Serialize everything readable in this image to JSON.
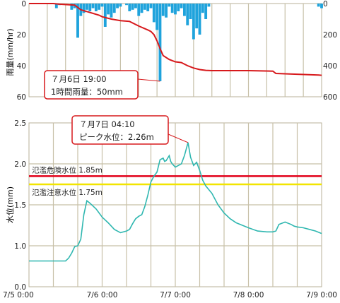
{
  "colors": {
    "rain_bar": "#1fa3dc",
    "cumulative_line": "#d7191c",
    "water_level_line": "#2fb7b0",
    "danger_line": "#e2001a",
    "caution_line": "#f2e500",
    "grid": "#c7c0a8",
    "callout_border": "#d7191c"
  },
  "chart_data": [
    {
      "type": "bar",
      "ylabel": "雨量(mm/hr)",
      "ylim": [
        60,
        0
      ],
      "yticks": [
        "0",
        "20",
        "40",
        "60"
      ],
      "right_ticks": [
        "0",
        "200",
        "400",
        "600"
      ],
      "right_ylim": [
        0,
        600
      ],
      "rain_bars": {
        "x": [
          "7/5 9:00",
          "7/5 10:00",
          "7/5 14:00",
          "7/5 15:00",
          "7/5 16:00",
          "7/5 17:00",
          "7/5 18:00",
          "7/5 19:00",
          "7/5 20:00",
          "7/5 21:00",
          "7/5 22:00",
          "7/5 23:00",
          "7/6 0:00",
          "7/6 1:00",
          "7/6 2:00",
          "7/6 3:00",
          "7/6 4:00",
          "7/6 5:00",
          "7/6 6:00",
          "7/6 8:00",
          "7/6 9:00",
          "7/6 10:00",
          "7/6 11:00",
          "7/6 12:00",
          "7/6 13:00",
          "7/6 14:00",
          "7/6 15:00",
          "7/6 16:00",
          "7/6 17:00",
          "7/6 18:00",
          "7/6 19:00",
          "7/6 20:00",
          "7/6 21:00",
          "7/6 22:00",
          "7/6 23:00",
          "7/7 0:00",
          "7/7 1:00",
          "7/7 2:00",
          "7/7 3:00",
          "7/7 4:00",
          "7/7 5:00",
          "7/7 6:00",
          "7/7 7:00",
          "7/7 8:00",
          "7/7 9:00",
          "7/7 10:00",
          "7/7 11:00",
          "7/8 23:00",
          "7/9 0:00"
        ],
        "values": [
          3,
          1,
          4,
          3,
          22,
          8,
          6,
          4,
          5,
          3,
          5,
          4,
          2,
          15,
          7,
          9,
          6,
          3,
          2,
          1,
          5,
          4,
          3,
          8,
          6,
          4,
          5,
          3,
          12,
          17,
          50,
          8,
          9,
          2,
          6,
          7,
          5,
          3,
          8,
          14,
          10,
          23,
          16,
          20,
          6,
          10,
          2,
          2,
          3
        ]
      },
      "cumulative_line": {
        "x": [
          "7/5 0:00",
          "7/5 8:00",
          "7/5 10:00",
          "7/5 15:00",
          "7/5 17:00",
          "7/5 23:00",
          "7/6 0:00",
          "7/6 3:00",
          "7/6 6:00",
          "7/6 9:00",
          "7/6 12:00",
          "7/6 15:00",
          "7/6 16:00",
          "7/6 17:00",
          "7/6 18:00",
          "7/6 19:00",
          "7/6 20:00",
          "7/6 22:00",
          "7/7 0:00",
          "7/7 2:00",
          "7/7 4:00",
          "7/7 6:00",
          "7/7 8:00",
          "7/7 10:00",
          "7/7 12:00",
          "7/8 0:00",
          "7/8 8:00",
          "7/8 9:00",
          "7/8 23:00",
          "7/9 0:00"
        ],
        "values": [
          0,
          0,
          4,
          10,
          40,
          75,
          85,
          100,
          110,
          115,
          145,
          170,
          180,
          200,
          240,
          290,
          335,
          360,
          375,
          380,
          400,
          415,
          425,
          430,
          432,
          432,
          435,
          450,
          460,
          462
        ]
      },
      "annotation": {
        "line1": "７月6日 19:00",
        "line2": "1時間雨量：50mm"
      }
    },
    {
      "type": "line",
      "ylabel": "水位(mm)",
      "ylim": [
        0.0,
        2.5
      ],
      "yticks": [
        "0.0",
        "1.0",
        "1.5",
        "2.0",
        "2.5"
      ],
      "x_tick_labels": [
        "7/5 0:00",
        "7/6 0:00",
        "7/7 0:00",
        "7/8 0:00",
        "7/9 0:00"
      ],
      "water_level": {
        "x": [
          "7/5 0:00",
          "7/5 6:00",
          "7/5 12:00",
          "7/5 13:00",
          "7/5 14:00",
          "7/5 15:00",
          "7/5 16:00",
          "7/5 17:00",
          "7/5 18:00",
          "7/5 19:00",
          "7/5 20:00",
          "7/5 22:00",
          "7/6 0:00",
          "7/6 2:00",
          "7/6 4:00",
          "7/6 6:00",
          "7/6 8:00",
          "7/6 9:00",
          "7/6 10:00",
          "7/6 11:00",
          "7/6 12:00",
          "7/6 13:00",
          "7/6 14:00",
          "7/6 15:00",
          "7/6 16:00",
          "7/6 17:00",
          "7/6 18:00",
          "7/6 19:00",
          "7/6 20:00",
          "7/6 20:30",
          "7/6 21:00",
          "7/6 21:30",
          "7/6 22:00",
          "7/6 22:30",
          "7/6 23:00",
          "7/7 0:00",
          "7/7 1:00",
          "7/7 2:00",
          "7/7 3:00",
          "7/7 4:10",
          "7/7 5:00",
          "7/7 6:00",
          "7/7 7:00",
          "7/7 8:00",
          "7/7 9:00",
          "7/7 10:00",
          "7/7 12:00",
          "7/7 14:00",
          "7/7 16:00",
          "7/7 18:00",
          "7/7 20:00",
          "7/7 22:00",
          "7/8 0:00",
          "7/8 3:00",
          "7/8 6:00",
          "7/8 8:00",
          "7/8 9:00",
          "7/8 10:00",
          "7/8 12:00",
          "7/8 14:00",
          "7/8 15:00",
          "7/8 16:00",
          "7/8 18:00",
          "7/8 20:00",
          "7/8 22:00",
          "7/9 0:00"
        ],
        "values": [
          0.63,
          0.63,
          0.63,
          0.7,
          0.82,
          0.98,
          1.0,
          1.08,
          1.38,
          1.55,
          1.52,
          1.45,
          1.35,
          1.28,
          1.2,
          1.16,
          1.18,
          1.2,
          1.27,
          1.33,
          1.36,
          1.38,
          1.48,
          1.62,
          1.78,
          1.85,
          1.9,
          2.05,
          2.07,
          2.03,
          2.04,
          2.07,
          2.1,
          2.03,
          2.0,
          1.96,
          1.98,
          2.0,
          2.1,
          2.26,
          2.08,
          1.98,
          2.02,
          1.92,
          1.8,
          1.73,
          1.64,
          1.5,
          1.4,
          1.33,
          1.28,
          1.25,
          1.22,
          1.18,
          1.17,
          1.17,
          1.18,
          1.26,
          1.29,
          1.26,
          1.24,
          1.23,
          1.22,
          1.2,
          1.18,
          1.15
        ]
      },
      "danger_level": {
        "label": "氾濫危険水位 1.85m",
        "value": 1.85
      },
      "caution_level": {
        "label": "氾濫注意水位 1.75m",
        "value": 1.75
      },
      "annotation": {
        "line1": "７月7日 04:10",
        "line2": "ピーク水位：2.26m"
      }
    }
  ]
}
